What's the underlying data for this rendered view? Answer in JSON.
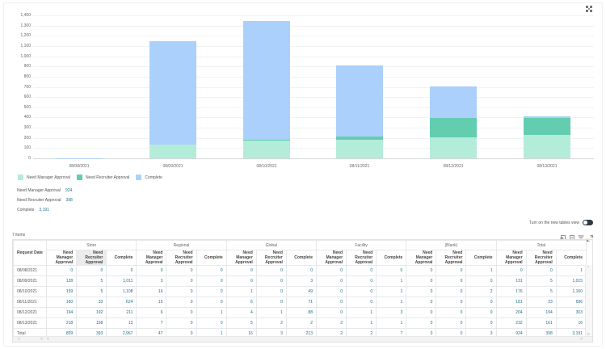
{
  "chart_data": {
    "type": "bar",
    "stacked": true,
    "title": "",
    "xlabel": "",
    "ylabel": "",
    "categories": [
      "08/08/2021",
      "08/09/2021",
      "08/10/2021",
      "08/11/2021",
      "08/12/2021",
      "08/13/2021"
    ],
    "series": [
      {
        "name": "Need Manager Approval",
        "color": "#b4ecda",
        "values": [
          0,
          131,
          176,
          181,
          204,
          232
        ]
      },
      {
        "name": "Need Recruiter Approval",
        "color": "#63cdb0",
        "values": [
          0,
          5,
          5,
          33,
          194,
          161
        ]
      },
      {
        "name": "Complete",
        "color": "#abd0fb",
        "values": [
          1,
          1015,
          1160,
          696,
          303,
          16
        ]
      }
    ],
    "ylim": [
      0,
      1400
    ],
    "yticks": [
      "0",
      "100",
      "200",
      "300",
      "400",
      "500",
      "600",
      "700",
      "800",
      "900",
      "1,000",
      "1,100",
      "1,200",
      "1,300",
      "1,400"
    ],
    "grid": true,
    "legend_position": "bottom-left"
  },
  "legend": [
    {
      "label": "Need Manager Approval",
      "color": "#b4ecda"
    },
    {
      "label": "Need Recruiter Approval",
      "color": "#63cdb0"
    },
    {
      "label": "Complete",
      "color": "#abd0fb"
    }
  ],
  "summary": [
    {
      "label": "Need Manager Approval",
      "value": "924"
    },
    {
      "label": "Need Recruiter Approval",
      "value": "398"
    },
    {
      "label": "Complete",
      "value": "3,191"
    }
  ],
  "toggle": {
    "label": "Turn on the new tables view",
    "on": false
  },
  "items_count": "7 items",
  "table": {
    "row_header": "Request Date",
    "groups": [
      "Store",
      "Regional",
      "Global",
      "Facility",
      "(Blank)",
      "Total"
    ],
    "sub_columns": [
      "Need Manager Approval",
      "Need Recruiter Approval",
      "Complete"
    ],
    "rows": [
      {
        "date": "08/08/2021",
        "cells": [
          "0",
          "0",
          "0",
          "0",
          "0",
          "0",
          "0",
          "0",
          "0",
          "0",
          "0",
          "0",
          "0",
          "0",
          "1",
          "0",
          "0",
          "1"
        ]
      },
      {
        "date": "08/09/2021",
        "cells": [
          "128",
          "5",
          "1,011",
          "3",
          "0",
          "0",
          "0",
          "0",
          "3",
          "0",
          "0",
          "1",
          "0",
          "0",
          "0",
          "131",
          "5",
          "1,015"
        ]
      },
      {
        "date": "08/10/2021",
        "cells": [
          "159",
          "5",
          "1,108",
          "16",
          "0",
          "0",
          "1",
          "0",
          "49",
          "0",
          "0",
          "1",
          "0",
          "0",
          "2",
          "176",
          "5",
          "1,160"
        ]
      },
      {
        "date": "08/11/2021",
        "cells": [
          "160",
          "33",
          "624",
          "15",
          "0",
          "0",
          "6",
          "0",
          "71",
          "0",
          "0",
          "1",
          "0",
          "0",
          "0",
          "181",
          "33",
          "696"
        ]
      },
      {
        "date": "08/12/2021",
        "cells": [
          "194",
          "192",
          "211",
          "6",
          "0",
          "1",
          "4",
          "1",
          "88",
          "0",
          "1",
          "3",
          "0",
          "0",
          "0",
          "204",
          "194",
          "303"
        ]
      },
      {
        "date": "08/13/2021",
        "cells": [
          "218",
          "158",
          "13",
          "7",
          "0",
          "0",
          "5",
          "2",
          "2",
          "2",
          "1",
          "1",
          "0",
          "0",
          "0",
          "232",
          "161",
          "16"
        ]
      },
      {
        "date": "Total",
        "cells": [
          "859",
          "393",
          "2,967",
          "47",
          "0",
          "1",
          "16",
          "3",
          "213",
          "2",
          "2",
          "7",
          "0",
          "0",
          "3",
          "924",
          "398",
          "3,191"
        ]
      }
    ]
  }
}
